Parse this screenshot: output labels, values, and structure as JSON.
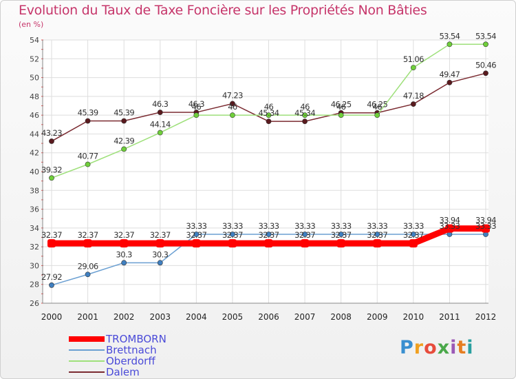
{
  "title": "Evolution du Taux de Taxe Foncière sur les Propriétés Non Bâties",
  "unit_label": "(en %)",
  "logo": "Proxiti",
  "chart_data": {
    "type": "line",
    "title": "Evolution du Taux de Taxe Foncière sur les Propriétés Non Bâties",
    "ylabel": "(en %)",
    "xlabel": "",
    "categories": [
      "2000",
      "2001",
      "2002",
      "2003",
      "2004",
      "2005",
      "2006",
      "2007",
      "2008",
      "2009",
      "2010",
      "2011",
      "2012"
    ],
    "ylim": [
      26,
      54
    ],
    "yticks": [
      26,
      28,
      30,
      32,
      34,
      36,
      38,
      40,
      42,
      44,
      46,
      48,
      50,
      52,
      54
    ],
    "grid": true,
    "legend": "bottom-left",
    "series": [
      {
        "name": "TROMBORN",
        "color": "#ff0000",
        "thick": true,
        "values": [
          32.37,
          32.37,
          32.37,
          32.37,
          32.37,
          32.37,
          32.37,
          32.37,
          32.37,
          32.37,
          32.37,
          33.94,
          33.94
        ],
        "labels": [
          "32.37",
          "32.37",
          "32.37",
          "32.37",
          "32.37",
          "32.37",
          "32.37",
          "32.37",
          "32.37",
          "32.37",
          "32.37",
          "33.94",
          "33.94"
        ]
      },
      {
        "name": "Brettnach",
        "color": "#6a9fd2",
        "marker": "#3f7fc0",
        "values": [
          27.92,
          29.06,
          30.3,
          30.3,
          33.33,
          33.33,
          33.33,
          33.33,
          33.33,
          33.33,
          33.33,
          33.33,
          33.33
        ],
        "labels": [
          "27.92",
          "29.06",
          "30.3",
          "30.3",
          "33.33",
          "33.33",
          "33.33",
          "33.33",
          "33.33",
          "33.33",
          "33.33",
          "33.33",
          "33.33"
        ]
      },
      {
        "name": "Oberdorff",
        "color": "#9ee07a",
        "marker": "#6fcf3a",
        "values": [
          39.32,
          40.77,
          42.39,
          44.14,
          46,
          46,
          46,
          46,
          46,
          46,
          51.06,
          53.54,
          53.54
        ],
        "labels": [
          "39.32",
          "40.77",
          "42.39",
          "44.14",
          "46",
          "46",
          "46",
          "46",
          "46",
          "46",
          "51.06",
          "53.54",
          "53.54"
        ]
      },
      {
        "name": "Dalem",
        "color": "#7a2a30",
        "marker": "#5a1a1e",
        "values": [
          43.23,
          45.39,
          45.39,
          46.3,
          46.3,
          47.23,
          45.34,
          45.34,
          46.25,
          46.25,
          47.18,
          49.47,
          50.46
        ],
        "labels": [
          "43.23",
          "45.39",
          "45.39",
          "46.3",
          "46.3",
          "47.23",
          "45.34",
          "45.34",
          "46.25",
          "46.25",
          "47.18",
          "49.47",
          "50.46"
        ]
      }
    ]
  }
}
